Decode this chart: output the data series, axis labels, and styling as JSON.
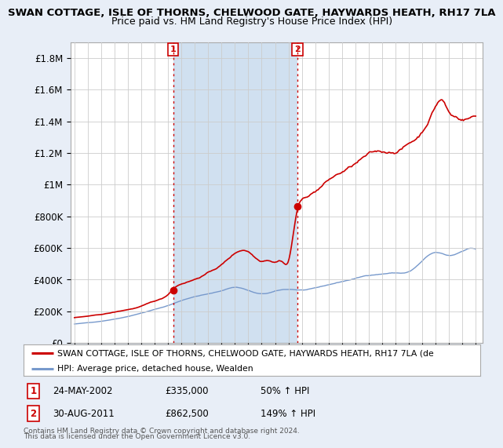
{
  "title_line1": "SWAN COTTAGE, ISLE OF THORNS, CHELWOOD GATE, HAYWARDS HEATH, RH17 7LA",
  "title_line2": "Price paid vs. HM Land Registry's House Price Index (HPI)",
  "background_color": "#e8eef7",
  "plot_bg_color": "#ffffff",
  "shaded_region_color": "#d0e0f0",
  "red_line_color": "#cc0000",
  "blue_line_color": "#7799cc",
  "vline_color": "#cc0000",
  "transaction1_x": 2002.38,
  "transaction1_price": 335000,
  "transaction2_x": 2011.67,
  "transaction2_price": 862500,
  "ylim": [
    0,
    1900000
  ],
  "yticks": [
    0,
    200000,
    400000,
    600000,
    800000,
    1000000,
    1200000,
    1400000,
    1600000,
    1800000
  ],
  "ytick_labels": [
    "£0",
    "£200K",
    "£400K",
    "£600K",
    "£800K",
    "£1M",
    "£1.2M",
    "£1.4M",
    "£1.6M",
    "£1.8M"
  ],
  "xlim_start": 1994.7,
  "xlim_end": 2025.5,
  "legend_label_red": "SWAN COTTAGE, ISLE OF THORNS, CHELWOOD GATE, HAYWARDS HEATH, RH17 7LA (de",
  "legend_label_blue": "HPI: Average price, detached house, Wealden",
  "footnote1": "Contains HM Land Registry data © Crown copyright and database right 2024.",
  "footnote2": "This data is licensed under the Open Government Licence v3.0.",
  "annotation1_date": "24-MAY-2002",
  "annotation1_price": "£335,000",
  "annotation1_hpi": "50% ↑ HPI",
  "annotation2_date": "30-AUG-2011",
  "annotation2_price": "£862,500",
  "annotation2_hpi": "149% ↑ HPI",
  "hpi_years": [
    1995,
    1996,
    1997,
    1998,
    1999,
    2000,
    2001,
    2002,
    2003,
    2004,
    2005,
    2006,
    2007,
    2008,
    2009,
    2010,
    2011,
    2012,
    2013,
    2014,
    2015,
    2016,
    2017,
    2018,
    2019,
    2020,
    2021,
    2022,
    2023,
    2024,
    2025
  ],
  "hpi_vals": [
    120000,
    128000,
    138000,
    152000,
    170000,
    192000,
    215000,
    240000,
    272000,
    298000,
    315000,
    335000,
    358000,
    338000,
    315000,
    330000,
    342000,
    338000,
    348000,
    368000,
    388000,
    408000,
    428000,
    438000,
    445000,
    452000,
    518000,
    568000,
    548000,
    578000,
    592000
  ],
  "prop_years": [
    1995,
    1996,
    1997,
    1998,
    1999,
    2000,
    2001,
    2002.0,
    2002.38,
    2003,
    2004,
    2005,
    2006,
    2007,
    2008,
    2008.5,
    2009,
    2009.5,
    2010,
    2010.5,
    2011.0,
    2011.67,
    2012,
    2013,
    2014,
    2015,
    2016,
    2017,
    2018,
    2019,
    2020,
    2021,
    2022,
    2022.5,
    2023,
    2023.5,
    2024,
    2024.5,
    2025
  ],
  "prop_vals": [
    160000,
    168000,
    178000,
    192000,
    208000,
    228000,
    258000,
    300000,
    335000,
    368000,
    398000,
    440000,
    490000,
    560000,
    575000,
    540000,
    520000,
    530000,
    520000,
    528000,
    530000,
    862500,
    920000,
    980000,
    1050000,
    1100000,
    1150000,
    1200000,
    1210000,
    1220000,
    1270000,
    1350000,
    1520000,
    1560000,
    1480000,
    1450000,
    1440000,
    1450000,
    1460000
  ]
}
